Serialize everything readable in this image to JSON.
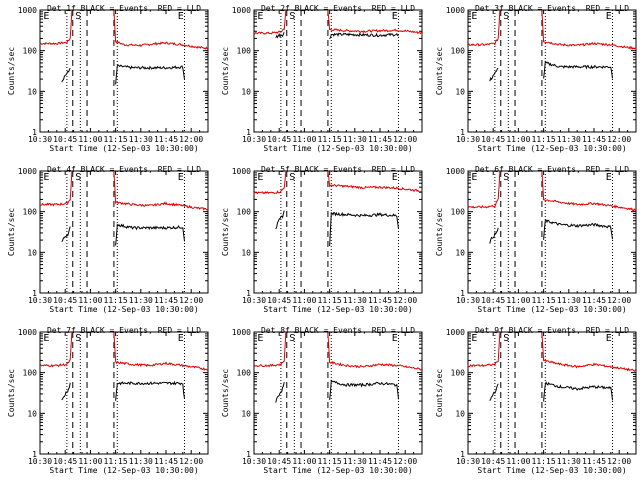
{
  "figure": {
    "xlabel": "Start Time (12-Sep-03 10:30:00)",
    "ylabel": "Counts/sec"
  },
  "chart_data": {
    "type": "line",
    "xlim_minutes": [
      0,
      100
    ],
    "ylim": [
      1,
      1000
    ],
    "yscale": "log",
    "x_tick_labels": [
      "10:30",
      "10:45",
      "11:00",
      "11:15",
      "11:30",
      "11:45",
      "12:00"
    ],
    "x_tick_minutes": [
      0,
      15,
      30,
      45,
      60,
      75,
      90
    ],
    "y_tick_labels": [
      "1",
      "10",
      "100",
      "1000"
    ],
    "y_tick_values": [
      1,
      10,
      100,
      1000
    ],
    "series_legend": "BLACK = Events, RED = LLD",
    "marker_labels": [
      "E",
      "S",
      "E"
    ],
    "panels": [
      {
        "title": "Det 1f BLACK = Events, RED = LLD",
        "detector": "1f",
        "red_pre": [
          [
            0,
            150
          ],
          [
            10,
            150
          ],
          [
            16,
            160
          ],
          [
            18,
            200
          ],
          [
            19,
            1000
          ]
        ],
        "red_post": [
          [
            44,
            1000
          ],
          [
            45,
            170
          ],
          [
            50,
            140
          ],
          [
            60,
            135
          ],
          [
            70,
            150
          ],
          [
            75,
            155
          ],
          [
            85,
            140
          ],
          [
            95,
            120
          ],
          [
            100,
            115
          ]
        ],
        "black_pre": [
          [
            13,
            18
          ],
          [
            15,
            25
          ],
          [
            17,
            30
          ],
          [
            18,
            40
          ]
        ],
        "black_post": [
          [
            45,
            14
          ],
          [
            46,
            42
          ],
          [
            55,
            38
          ],
          [
            65,
            38
          ],
          [
            75,
            38
          ],
          [
            85,
            40
          ],
          [
            86,
            20
          ]
        ],
        "dotted_minutes": [
          16,
          24,
          46,
          86
        ],
        "dashed_minutes": [
          19.5,
          28,
          44
        ]
      },
      {
        "title": "Det 2f BLACK = Events, RED = LLD",
        "detector": "2f",
        "red_pre": [
          [
            0,
            270
          ],
          [
            10,
            270
          ],
          [
            16,
            290
          ],
          [
            18,
            350
          ],
          [
            19,
            1000
          ]
        ],
        "red_post": [
          [
            44,
            1000
          ],
          [
            45,
            330
          ],
          [
            55,
            310
          ],
          [
            65,
            300
          ],
          [
            75,
            310
          ],
          [
            85,
            320
          ],
          [
            95,
            290
          ],
          [
            100,
            270
          ]
        ],
        "black_pre": [
          [
            13,
            220
          ],
          [
            15,
            240
          ],
          [
            17,
            250
          ],
          [
            18,
            270
          ]
        ],
        "black_post": [
          [
            45,
            200
          ],
          [
            46,
            250
          ],
          [
            55,
            250
          ],
          [
            65,
            245
          ],
          [
            75,
            240
          ],
          [
            85,
            250
          ],
          [
            86,
            220
          ]
        ],
        "dotted_minutes": [
          16,
          24,
          46,
          86
        ],
        "dashed_minutes": [
          19.5,
          28,
          44
        ]
      },
      {
        "title": "Det 3f BLACK = Events, RED = LLD",
        "detector": "3f",
        "red_pre": [
          [
            0,
            140
          ],
          [
            10,
            140
          ],
          [
            16,
            150
          ],
          [
            18,
            200
          ],
          [
            19,
            1000
          ]
        ],
        "red_post": [
          [
            44,
            1000
          ],
          [
            45,
            170
          ],
          [
            55,
            140
          ],
          [
            65,
            135
          ],
          [
            75,
            150
          ],
          [
            85,
            140
          ],
          [
            95,
            120
          ],
          [
            100,
            115
          ]
        ],
        "black_pre": [
          [
            13,
            18
          ],
          [
            15,
            25
          ],
          [
            17,
            30
          ],
          [
            18,
            40
          ]
        ],
        "black_post": [
          [
            45,
            20
          ],
          [
            46,
            50
          ],
          [
            55,
            40
          ],
          [
            65,
            40
          ],
          [
            75,
            40
          ],
          [
            85,
            40
          ],
          [
            86,
            22
          ]
        ],
        "dotted_minutes": [
          16,
          24,
          46,
          86
        ],
        "dashed_minutes": [
          19.5,
          28,
          44
        ]
      },
      {
        "title": "Det 4f BLACK = Events, RED = LLD",
        "detector": "4f",
        "red_pre": [
          [
            0,
            150
          ],
          [
            10,
            150
          ],
          [
            16,
            160
          ],
          [
            18,
            200
          ],
          [
            19,
            1000
          ]
        ],
        "red_post": [
          [
            44,
            1000
          ],
          [
            45,
            170
          ],
          [
            55,
            150
          ],
          [
            65,
            140
          ],
          [
            75,
            160
          ],
          [
            85,
            140
          ],
          [
            95,
            120
          ],
          [
            100,
            115
          ]
        ],
        "black_pre": [
          [
            13,
            18
          ],
          [
            15,
            25
          ],
          [
            17,
            30
          ],
          [
            18,
            40
          ]
        ],
        "black_post": [
          [
            45,
            14
          ],
          [
            46,
            48
          ],
          [
            55,
            40
          ],
          [
            65,
            40
          ],
          [
            75,
            40
          ],
          [
            85,
            42
          ],
          [
            86,
            20
          ]
        ],
        "dotted_minutes": [
          16,
          24,
          46,
          86
        ],
        "dashed_minutes": [
          19.5,
          28,
          44
        ]
      },
      {
        "title": "Det 5f BLACK = Events, RED = LLD",
        "detector": "5f",
        "red_pre": [
          [
            0,
            290
          ],
          [
            10,
            290
          ],
          [
            16,
            310
          ],
          [
            18,
            400
          ],
          [
            19,
            1000
          ]
        ],
        "red_post": [
          [
            44,
            1000
          ],
          [
            45,
            450
          ],
          [
            55,
            420
          ],
          [
            65,
            390
          ],
          [
            75,
            400
          ],
          [
            85,
            380
          ],
          [
            95,
            340
          ],
          [
            100,
            320
          ]
        ],
        "black_pre": [
          [
            13,
            40
          ],
          [
            15,
            60
          ],
          [
            17,
            80
          ],
          [
            18,
            100
          ]
        ],
        "black_post": [
          [
            45,
            15
          ],
          [
            46,
            90
          ],
          [
            55,
            85
          ],
          [
            65,
            80
          ],
          [
            75,
            85
          ],
          [
            85,
            80
          ],
          [
            86,
            40
          ]
        ],
        "dotted_minutes": [
          16,
          24,
          46,
          86
        ],
        "dashed_minutes": [
          19.5,
          28,
          44
        ]
      },
      {
        "title": "Det 6f BLACK = Events, RED = LLD",
        "detector": "6f",
        "red_pre": [
          [
            0,
            130
          ],
          [
            10,
            130
          ],
          [
            16,
            140
          ],
          [
            18,
            200
          ],
          [
            19,
            1000
          ]
        ],
        "red_post": [
          [
            44,
            1000
          ],
          [
            45,
            200
          ],
          [
            55,
            170
          ],
          [
            65,
            150
          ],
          [
            75,
            160
          ],
          [
            85,
            140
          ],
          [
            95,
            120
          ],
          [
            100,
            110
          ]
        ],
        "black_pre": [
          [
            13,
            18
          ],
          [
            15,
            25
          ],
          [
            17,
            30
          ],
          [
            18,
            40
          ]
        ],
        "black_post": [
          [
            45,
            20
          ],
          [
            46,
            60
          ],
          [
            55,
            48
          ],
          [
            65,
            45
          ],
          [
            75,
            48
          ],
          [
            85,
            42
          ],
          [
            86,
            22
          ]
        ],
        "dotted_minutes": [
          16,
          24,
          46,
          86
        ],
        "dashed_minutes": [
          19.5,
          28,
          44
        ]
      },
      {
        "title": "Det 7f BLACK = Events, RED = LLD",
        "detector": "7f",
        "red_pre": [
          [
            0,
            150
          ],
          [
            10,
            150
          ],
          [
            16,
            160
          ],
          [
            18,
            200
          ],
          [
            19,
            1000
          ]
        ],
        "red_post": [
          [
            44,
            1000
          ],
          [
            45,
            180
          ],
          [
            55,
            160
          ],
          [
            65,
            150
          ],
          [
            75,
            170
          ],
          [
            85,
            150
          ],
          [
            95,
            130
          ],
          [
            100,
            120
          ]
        ],
        "black_pre": [
          [
            13,
            20
          ],
          [
            15,
            30
          ],
          [
            17,
            40
          ],
          [
            18,
            55
          ]
        ],
        "black_post": [
          [
            45,
            20
          ],
          [
            46,
            55
          ],
          [
            55,
            55
          ],
          [
            65,
            55
          ],
          [
            75,
            55
          ],
          [
            85,
            55
          ],
          [
            86,
            22
          ]
        ],
        "dotted_minutes": [
          16,
          24,
          46,
          86
        ],
        "dashed_minutes": [
          19.5,
          28,
          44
        ]
      },
      {
        "title": "Det 8f BLACK = Events, RED = LLD",
        "detector": "8f",
        "red_pre": [
          [
            0,
            150
          ],
          [
            10,
            150
          ],
          [
            16,
            160
          ],
          [
            18,
            200
          ],
          [
            19,
            1000
          ]
        ],
        "red_post": [
          [
            44,
            1000
          ],
          [
            45,
            180
          ],
          [
            55,
            150
          ],
          [
            65,
            140
          ],
          [
            75,
            160
          ],
          [
            85,
            150
          ],
          [
            95,
            130
          ],
          [
            100,
            120
          ]
        ],
        "black_pre": [
          [
            13,
            20
          ],
          [
            15,
            30
          ],
          [
            17,
            40
          ],
          [
            18,
            55
          ]
        ],
        "black_post": [
          [
            45,
            20
          ],
          [
            46,
            60
          ],
          [
            55,
            50
          ],
          [
            65,
            50
          ],
          [
            75,
            55
          ],
          [
            85,
            50
          ],
          [
            86,
            22
          ]
        ],
        "dotted_minutes": [
          16,
          24,
          46,
          86
        ],
        "dashed_minutes": [
          19.5,
          28,
          44
        ]
      },
      {
        "title": "Det 9f BLACK = Events, RED = LLD",
        "detector": "9f",
        "red_pre": [
          [
            0,
            150
          ],
          [
            10,
            150
          ],
          [
            16,
            160
          ],
          [
            18,
            200
          ],
          [
            19,
            1000
          ]
        ],
        "red_post": [
          [
            44,
            1000
          ],
          [
            45,
            200
          ],
          [
            55,
            160
          ],
          [
            65,
            140
          ],
          [
            75,
            160
          ],
          [
            85,
            140
          ],
          [
            95,
            120
          ],
          [
            100,
            110
          ]
        ],
        "black_pre": [
          [
            13,
            20
          ],
          [
            15,
            30
          ],
          [
            17,
            40
          ],
          [
            18,
            50
          ]
        ],
        "black_post": [
          [
            45,
            20
          ],
          [
            46,
            55
          ],
          [
            55,
            45
          ],
          [
            65,
            40
          ],
          [
            75,
            45
          ],
          [
            85,
            42
          ],
          [
            86,
            22
          ]
        ],
        "dotted_minutes": [
          16,
          24,
          46,
          86
        ],
        "dashed_minutes": [
          19.5,
          28,
          44
        ]
      }
    ]
  }
}
